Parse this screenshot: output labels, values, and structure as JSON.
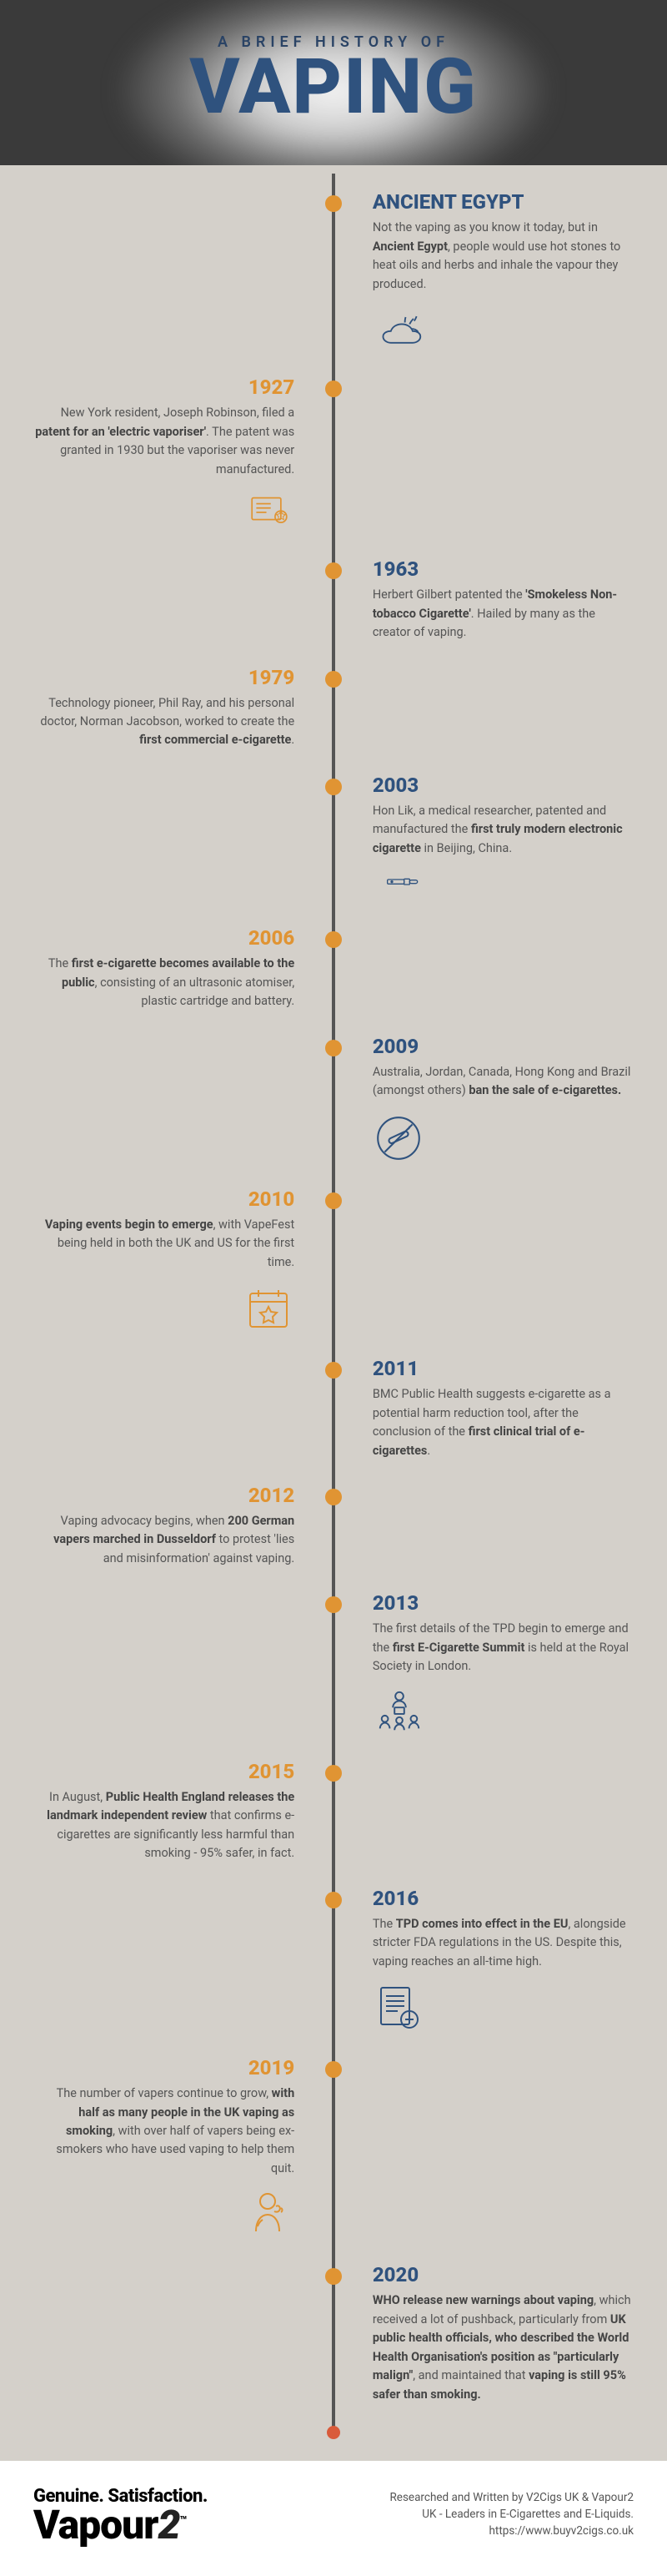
{
  "header": {
    "subtitle": "A BRIEF HISTORY OF",
    "title": "VAPING",
    "bg_color": "#3a3a3a",
    "title_color": "#2f527e"
  },
  "colors": {
    "page_bg": "#d4d0ca",
    "line": "#555555",
    "dot_orange": "#e09433",
    "dot_blue": "#2f527e",
    "dot_red": "#d95b3b",
    "left_accent": "#e09433",
    "right_accent": "#2f527e",
    "body_text": "#555555"
  },
  "typography": {
    "title_fontsize": 92,
    "subtitle_fontsize": 18,
    "subtitle_letterspacing": 6,
    "year_fontsize": 24,
    "body_fontsize": 14.5
  },
  "timeline": [
    {
      "side": "right",
      "dot_color": "#e09433",
      "year": "ANCIENT EGYPT",
      "body_html": "Not the vaping as you know it today, but in <strong>Ancient Egypt</strong>, people would use hot stones to heat oils and herbs and inhale the vapour they produced.",
      "icon": "stones"
    },
    {
      "side": "left",
      "dot_color": "#e09433",
      "year": "1927",
      "body_html": "New York resident, Joseph Robinson, filed a <strong>patent for an 'electric vaporiser'</strong>. The patent was granted in 1930 but the vaporiser was never manufactured.",
      "icon": "patent"
    },
    {
      "side": "right",
      "dot_color": "#e09433",
      "year": "1963",
      "body_html": "Herbert Gilbert patented the <strong>'Smokeless Non-tobacco Cigarette'</strong>. Hailed by many as the creator of vaping."
    },
    {
      "side": "left",
      "dot_color": "#e09433",
      "year": "1979",
      "body_html": "Technology pioneer, Phil Ray, and his personal doctor, Norman Jacobson, worked to create the <strong>first commercial e-cigarette</strong>."
    },
    {
      "side": "right",
      "dot_color": "#e09433",
      "year": "2003",
      "body_html": "Hon Lik, a medical researcher, patented and manufactured the <strong>first truly modern electronic cigarette</strong> in Beijing, China.",
      "icon": "ecig"
    },
    {
      "side": "left",
      "dot_color": "#e09433",
      "year": "2006",
      "body_html": "The <strong>first e-cigarette becomes available to the public</strong>, consisting of an ultrasonic atomiser, plastic cartridge and battery."
    },
    {
      "side": "right",
      "dot_color": "#e09433",
      "year": "2009",
      "body_html": "Australia, Jordan, Canada, Hong Kong and Brazil (amongst others) <strong>ban the sale of e-cigarettes.</strong>",
      "icon": "ban"
    },
    {
      "side": "left",
      "dot_color": "#e09433",
      "year": "2010",
      "body_html": "<strong>Vaping events begin to emerge</strong>, with VapeFest being held in both the UK and US for the first time.",
      "icon": "calendar"
    },
    {
      "side": "right",
      "dot_color": "#e09433",
      "year": "2011",
      "body_html": "BMC Public Health suggests e-cigarette as a potential harm reduction tool, after the conclusion of the <strong>first clinical trial of e-cigarettes</strong>."
    },
    {
      "side": "left",
      "dot_color": "#e09433",
      "year": "2012",
      "body_html": "Vaping advocacy begins, when <strong>200 German vapers marched in Dusseldorf</strong> to protest 'lies and misinformation' against vaping."
    },
    {
      "side": "right",
      "dot_color": "#e09433",
      "year": "2013",
      "body_html": "The first details of the TPD begin to emerge and the <strong>first E-Cigarette Summit</strong> is held at the Royal Society in London.",
      "icon": "summit"
    },
    {
      "side": "left",
      "dot_color": "#e09433",
      "year": "2015",
      "body_html": "In August, <strong>Public Health England releases the landmark independent review</strong> that confirms e-cigarettes are significantly less harmful than smoking - 95% safer, in fact."
    },
    {
      "side": "right",
      "dot_color": "#e09433",
      "year": "2016",
      "body_html": "The <strong>TPD comes into effect in the EU</strong>, alongside stricter FDA regulations in the US. Despite this, vaping reaches an all-time high.",
      "icon": "doc"
    },
    {
      "side": "left",
      "dot_color": "#e09433",
      "year": "2019",
      "body_html": "The number of vapers continue to grow, <strong>with half as many people in the UK vaping as smoking</strong>, with over half of vapers being ex-smokers who have used vaping to help them quit.",
      "icon": "person"
    },
    {
      "side": "right",
      "dot_color": "#e09433",
      "year": "2020",
      "body_html": "<strong>WHO release new warnings about vaping</strong>, which received a lot of pushback, particularly from <strong>UK public health officials, who described the World Health Organisation's position as \"particularly malign\"</strong>, and maintained that <strong>vaping is still 95% safer than smoking.</strong>"
    }
  ],
  "footer": {
    "slogan": "Genuine. Satisfaction.",
    "brand": "Vapour",
    "brand_suffix": "2",
    "credit_line1": "Researched and Written by V2Cigs UK & Vapour2",
    "credit_line2": "UK - Leaders in E-Cigarettes and E-Liquids.",
    "credit_url": "https://www.buyv2cigs.co.uk",
    "bg_color": "#ffffff"
  }
}
